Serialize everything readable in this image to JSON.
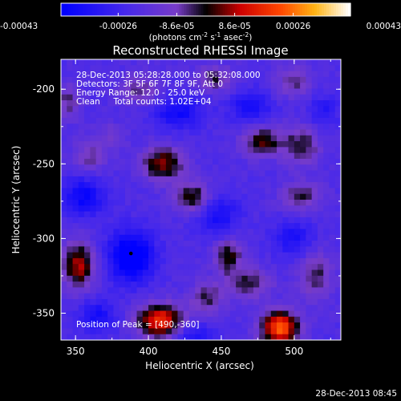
{
  "chart_data": {
    "type": "heatmap",
    "title": "Reconstructed RHESSI Image",
    "xlabel": "Heliocentric X (arcsec)",
    "ylabel": "Heliocentric Y (arcsec)",
    "xlim": [
      340,
      532
    ],
    "ylim": [
      -368,
      -180
    ],
    "x_ticks": [
      "350",
      "400",
      "450",
      "500"
    ],
    "x_tick_values": [
      350,
      400,
      450,
      500
    ],
    "y_ticks": [
      "-200",
      "-250",
      "-300",
      "-350"
    ],
    "y_tick_values": [
      -200,
      -250,
      -300,
      -350
    ],
    "colorbar": {
      "min": -0.00043,
      "max": 0.00043,
      "tick_labels": [
        "-0.00043",
        "-0.00026",
        "-8.6e-05",
        "8.6e-05",
        "0.00026",
        "0.00043"
      ],
      "tick_values": [
        -0.00043,
        -0.00026,
        -8.6e-05,
        8.6e-05,
        0.00026,
        0.00043
      ],
      "unit_text": "(photons cm",
      "unit_exp1": "-2",
      "unit_mid": " s",
      "unit_exp2": "-1",
      "unit_end": " asec",
      "unit_exp3": "-2",
      "unit_close": ")"
    },
    "annotations": [
      "28-Dec-2013 05:28:28.000 to 05:32:08.000",
      "Detectors: 3F 5F 6F 7F 8F 9F, Att 0",
      "Energy Range: 12.0 - 25.0 keV",
      "Clean     Total counts: 1.02E+04"
    ],
    "peak_label": "Position of Peak = [490,-360]",
    "peak": [
      490,
      -360
    ],
    "marker": [
      388,
      -310
    ],
    "sources": [
      {
        "x": 490,
        "y": -360,
        "amp": 0.00045,
        "sx": 9,
        "sy": 8
      },
      {
        "x": 408,
        "y": -355,
        "amp": 0.00038,
        "sx": 11,
        "sy": 8
      },
      {
        "x": 352,
        "y": -318,
        "amp": 0.0003,
        "sx": 8,
        "sy": 11
      },
      {
        "x": 410,
        "y": -250,
        "amp": 0.00028,
        "sx": 10,
        "sy": 8
      },
      {
        "x": 430,
        "y": -272,
        "amp": 0.00024,
        "sx": 9,
        "sy": 7
      },
      {
        "x": 478,
        "y": -235,
        "amp": 0.00024,
        "sx": 10,
        "sy": 7
      },
      {
        "x": 505,
        "y": -238,
        "amp": 0.0002,
        "sx": 9,
        "sy": 9
      },
      {
        "x": 505,
        "y": -272,
        "amp": 0.00018,
        "sx": 10,
        "sy": 7
      },
      {
        "x": 455,
        "y": -312,
        "amp": 0.00022,
        "sx": 7,
        "sy": 9
      },
      {
        "x": 470,
        "y": -330,
        "amp": 0.0002,
        "sx": 10,
        "sy": 7
      },
      {
        "x": 440,
        "y": -340,
        "amp": 0.00018,
        "sx": 8,
        "sy": 8
      },
      {
        "x": 515,
        "y": -325,
        "amp": 0.00018,
        "sx": 8,
        "sy": 12
      },
      {
        "x": 360,
        "y": -245,
        "amp": 0.00014,
        "sx": 8,
        "sy": 8
      },
      {
        "x": 345,
        "y": -208,
        "amp": 0.00016,
        "sx": 6,
        "sy": 8
      },
      {
        "x": 395,
        "y": -200,
        "amp": 0.00016,
        "sx": 10,
        "sy": 7
      },
      {
        "x": 445,
        "y": -193,
        "amp": 0.00018,
        "sx": 9,
        "sy": 6
      },
      {
        "x": 500,
        "y": -195,
        "amp": 0.00016,
        "sx": 9,
        "sy": 7
      },
      {
        "x": 375,
        "y": -232,
        "amp": 0.0001,
        "sx": 7,
        "sy": 6
      },
      {
        "x": 388,
        "y": -312,
        "amp": -0.0003,
        "sx": 11,
        "sy": 12
      },
      {
        "x": 355,
        "y": -272,
        "amp": -0.0002,
        "sx": 10,
        "sy": 9
      },
      {
        "x": 420,
        "y": -215,
        "amp": -0.00018,
        "sx": 12,
        "sy": 8
      },
      {
        "x": 470,
        "y": -212,
        "amp": -0.00016,
        "sx": 10,
        "sy": 8
      },
      {
        "x": 448,
        "y": -285,
        "amp": -0.00016,
        "sx": 10,
        "sy": 10
      },
      {
        "x": 500,
        "y": -300,
        "amp": -0.00014,
        "sx": 10,
        "sy": 9
      },
      {
        "x": 432,
        "y": -365,
        "amp": -0.00014,
        "sx": 10,
        "sy": 6
      },
      {
        "x": 365,
        "y": -352,
        "amp": -0.00016,
        "sx": 9,
        "sy": 8
      },
      {
        "x": 520,
        "y": -215,
        "amp": -0.00012,
        "sx": 7,
        "sy": 8
      }
    ]
  },
  "footer": {
    "timestamp": "28-Dec-2013 08:45"
  }
}
